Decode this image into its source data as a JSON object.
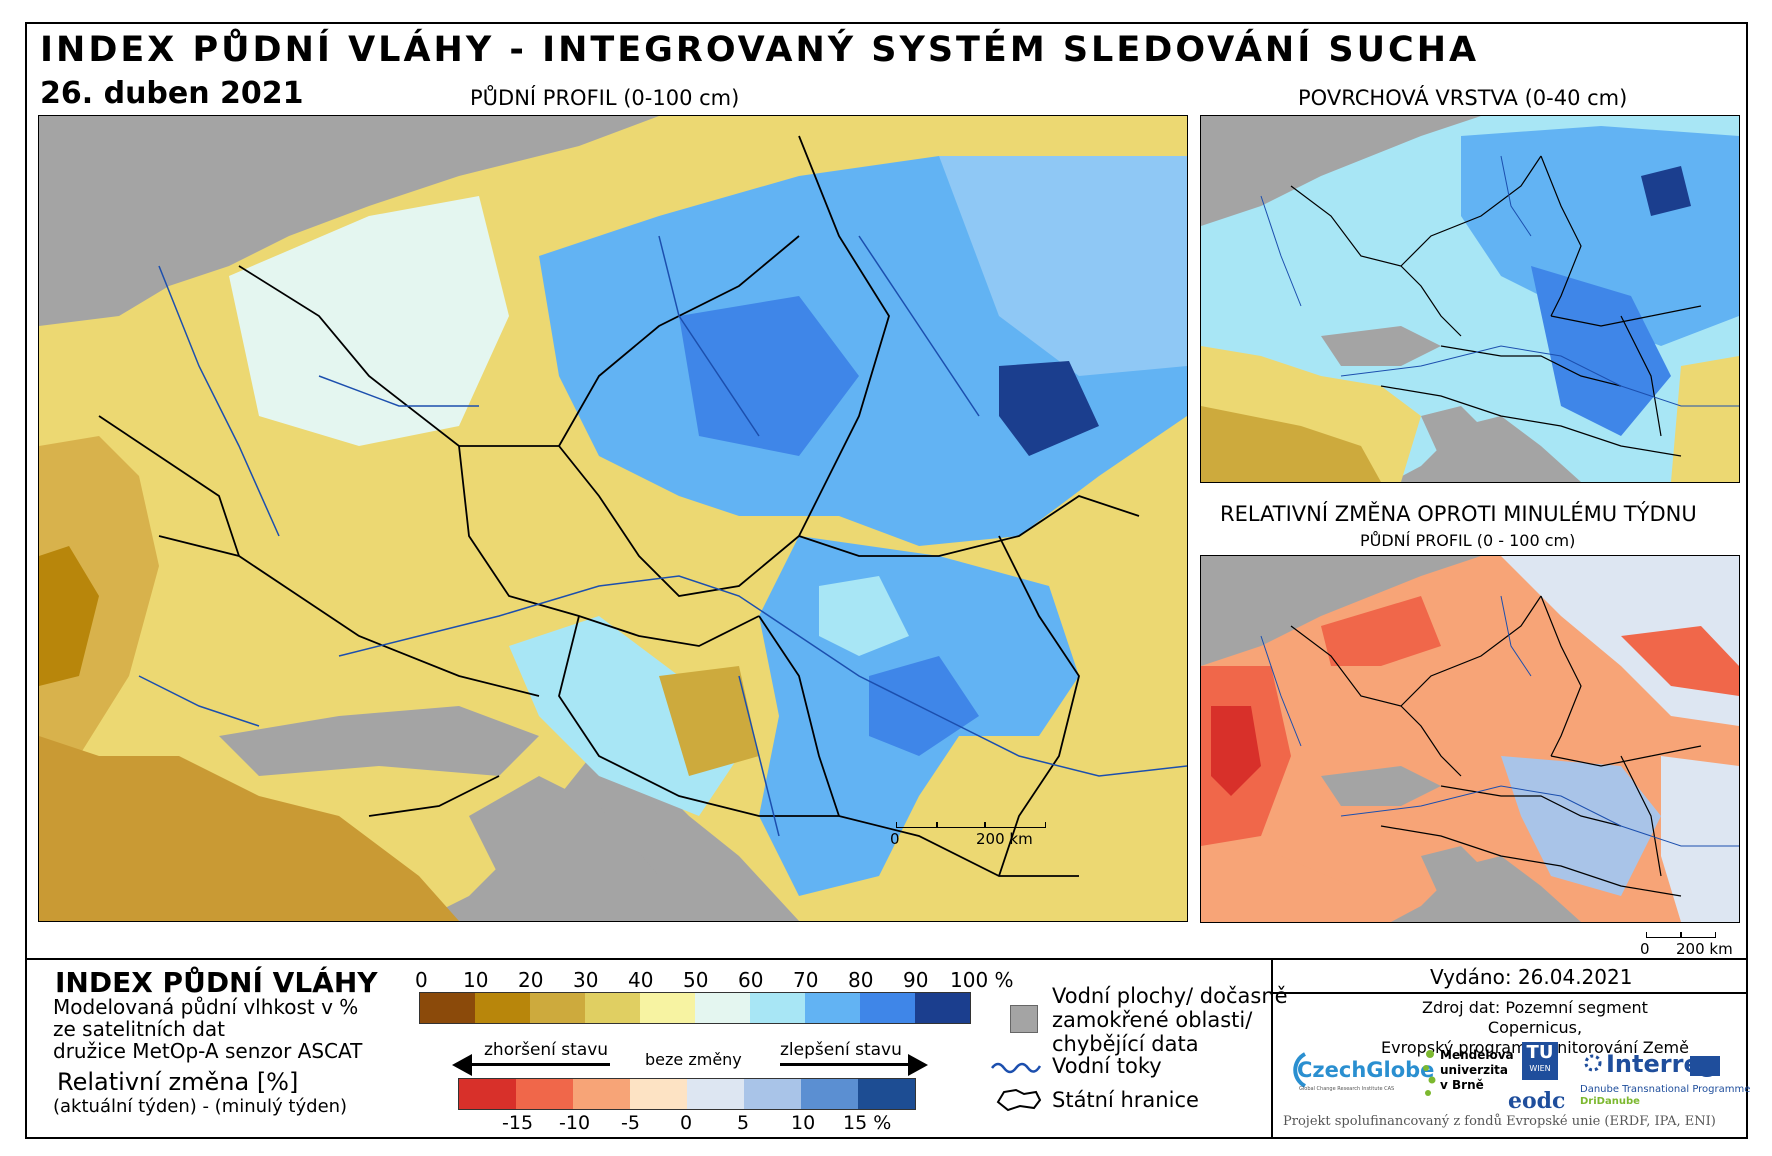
{
  "header": {
    "title": "INDEX PŮDNÍ VLÁHY - INTEGROVANÝ SYSTÉM SLEDOVÁNÍ SUCHA",
    "date": "26. duben 2021"
  },
  "panels": {
    "main_title": "PŮDNÍ PROFIL (0-100 cm)",
    "surface_title": "POVRCHOVÁ VRSTVA (0-40 cm)",
    "change_title": "RELATIVNÍ ZMĚNA OPROTI MINULÉMU TÝDNU",
    "change_subtitle": "PŮDNÍ PROFIL (0 - 100 cm)"
  },
  "scalebar": {
    "main_zero": "0",
    "main_label": "200 km",
    "side_zero": "0",
    "side_label": "200 km"
  },
  "legend": {
    "title": "INDEX PŮDNÍ VLÁHY",
    "desc_line1": "Modelovaná půdní vlhkost v %",
    "desc_line2": "ze satelitních dat",
    "desc_line3": "družice MetOp-A senzor ASCAT",
    "rel_title": "Relativní změna [%]",
    "rel_formula": "(aktuální týden) - (minulý týden)",
    "ramp_labels": [
      "0",
      "10",
      "20",
      "30",
      "40",
      "50",
      "60",
      "70",
      "80",
      "90",
      "100 %"
    ],
    "ramp_colors": [
      "#8b4a0a",
      "#b8860b",
      "#cdaa3d",
      "#e0cf62",
      "#f7f3a2",
      "#e4f6f0",
      "#a8e6f5",
      "#62b3f3",
      "#3f86e8",
      "#1b3e8e"
    ],
    "worse": "zhoršení stavu",
    "nochange": "beze změny",
    "better": "zlepšení stavu",
    "change_labels": [
      "-15",
      "-10",
      "-5",
      "0",
      "5",
      "10",
      "15 %"
    ],
    "change_colors": [
      "#d8302a",
      "#f0674a",
      "#f7a477",
      "#fde3c4",
      "#dde6f2",
      "#a9c4e8",
      "#5b8fd2",
      "#1d4d93"
    ],
    "water_bodies": "Vodní plochy/ dočasně",
    "water_bodies2": "zamokřené oblasti/",
    "water_bodies3": "chybějící data",
    "rivers": "Vodní toky",
    "borders": "Státní hranice"
  },
  "info": {
    "issued": "Vydáno: 26.04.2021",
    "source1": "Zdroj dat: Pozemní segment Copernicus,",
    "source2": "Evropský program monitorování Země",
    "logo_czechglobe": "CzechGlobe",
    "logo_czechglobe_sub": "Global Change Research Institute CAS",
    "logo_mendel1": "Mendelova",
    "logo_mendel2": "univerzita",
    "logo_mendel3": "v Brně",
    "logo_tu1": "TU",
    "logo_tu2": "WIEN",
    "logo_eodc": "eodc",
    "logo_interreg": "Interreg",
    "logo_interreg_sub": "Danube Transnational Programme",
    "logo_dridanube": "DriDanube",
    "footer": "Projekt spolufinancovaný z fondů Evropské unie (ERDF, IPA, ENI)"
  }
}
